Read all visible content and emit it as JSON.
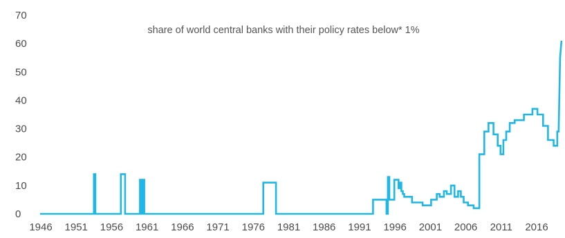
{
  "chart_data": {
    "type": "line",
    "title": "share of world central banks with their policy rates below* 1%",
    "xlabel": "",
    "ylabel": "",
    "xlim": [
      1946,
      2020
    ],
    "ylim": [
      0,
      70
    ],
    "x_ticks": [
      "1946",
      "1951",
      "1956",
      "1961",
      "1966",
      "1971",
      "1976",
      "1981",
      "1986",
      "1991",
      "1996",
      "2001",
      "2006",
      "2011",
      "2016"
    ],
    "y_ticks": [
      "0",
      "10",
      "20",
      "30",
      "40",
      "50",
      "60",
      "70"
    ],
    "grid": false,
    "legend": "none",
    "line_color": "#1fb8e6",
    "series": [
      {
        "x": [
          1946,
          1953.6,
          1953.6,
          1953.8,
          1953.8,
          1957.4,
          1957.4,
          1958.0,
          1958.0,
          1960.1,
          1960.1,
          1960.3,
          1960.3,
          1960.5,
          1960.5,
          1960.7,
          1960.7,
          1977.5,
          1977.5,
          1979.3,
          1979.3,
          1993.0,
          1993.0,
          1994.9,
          1994.9,
          1995.1,
          1995.1,
          1995.3,
          1995.3,
          1996.0,
          1996.0,
          1996.6,
          1996.6,
          1996.8,
          1996.8,
          1997.0,
          1997.0,
          1997.2,
          1997.2,
          1997.4,
          1997.4,
          1998.5,
          1998.5,
          2000.0,
          2000.0,
          2001.2,
          2001.2,
          2002.0,
          2002.0,
          2002.4,
          2002.4,
          2003.0,
          2003.0,
          2003.4,
          2003.4,
          2004.0,
          2004.0,
          2004.5,
          2004.5,
          2005.0,
          2005.0,
          2005.4,
          2005.4,
          2005.8,
          2005.8,
          2006.4,
          2006.4,
          2007.2,
          2007.2,
          2008.0,
          2008.0,
          2008.7,
          2008.7,
          2009.3,
          2009.3,
          2010.0,
          2010.0,
          2010.6,
          2010.6,
          2011.0,
          2011.0,
          2011.4,
          2011.4,
          2011.8,
          2011.8,
          2012.3,
          2012.3,
          2013.0,
          2013.0,
          2014.3,
          2014.3,
          2015.5,
          2015.5,
          2016.2,
          2016.2,
          2017.0,
          2017.0,
          2017.7,
          2017.7,
          2018.5,
          2018.5,
          2019.0,
          2019.0,
          2019.2,
          2019.4,
          2019.6
        ],
        "y": [
          0,
          0,
          14,
          14,
          0,
          0,
          14,
          14,
          0,
          0,
          12,
          12,
          0,
          0,
          12,
          12,
          0,
          0,
          11,
          11,
          0,
          0,
          5,
          5,
          0,
          0,
          13,
          13,
          5,
          5,
          12,
          12,
          9,
          9,
          11,
          11,
          8,
          8,
          7,
          7,
          6,
          6,
          4,
          4,
          3,
          3,
          5,
          5,
          7,
          7,
          6,
          6,
          8,
          8,
          7,
          7,
          10,
          10,
          6,
          6,
          8,
          8,
          6,
          6,
          4,
          4,
          3,
          3,
          2,
          2,
          21,
          21,
          29,
          29,
          32,
          32,
          28,
          28,
          24,
          24,
          21,
          21,
          26,
          26,
          29,
          29,
          32,
          32,
          33,
          33,
          35,
          35,
          37,
          37,
          35,
          35,
          31,
          31,
          26,
          26,
          24,
          24,
          29,
          29,
          55,
          61
        ]
      }
    ]
  }
}
